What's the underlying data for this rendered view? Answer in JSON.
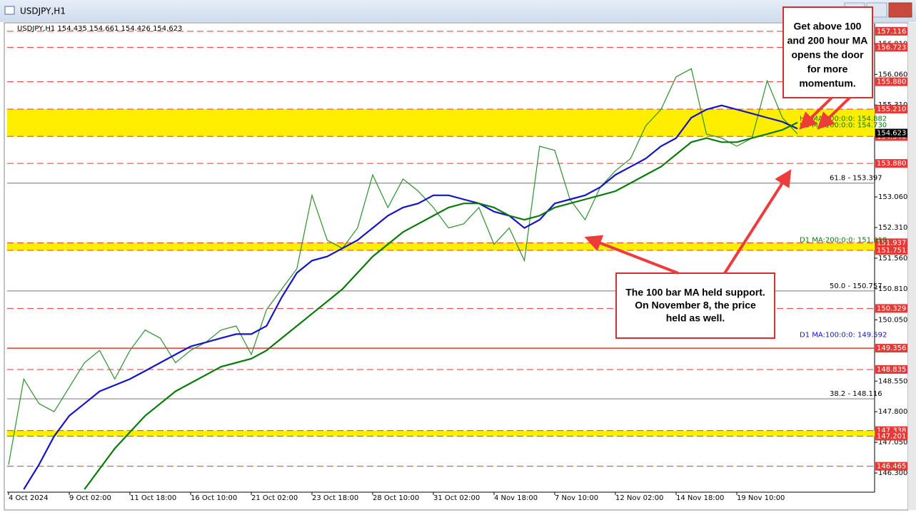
{
  "window_title": "USDJPY,H1",
  "chart_data": {
    "type": "line",
    "title": "USDJPY,H1 154.435 154.661 154.426 154.623",
    "current_price": 154.623,
    "categories": [
      "4 Oct 2024",
      null,
      null,
      null,
      "9 Oct 02:00",
      null,
      null,
      null,
      "11 Oct 18:00",
      null,
      null,
      null,
      "16 Oct 10:00",
      null,
      null,
      null,
      "21 Oct 02:00",
      null,
      null,
      null,
      "23 Oct 18:00",
      null,
      null,
      null,
      "28 Oct 10:00",
      null,
      null,
      null,
      "31 Oct 02:00",
      null,
      null,
      null,
      "4 Nov 18:00",
      null,
      null,
      null,
      "7 Nov 10:00",
      null,
      null,
      null,
      "12 Nov 02:00",
      null,
      null,
      null,
      "14 Nov 18:00",
      null,
      null,
      null,
      "19 Nov 10:00",
      null,
      null,
      null,
      null
    ],
    "series": [
      {
        "color": "#2f8f2f",
        "width": 1.2,
        "values": [
          146.5,
          148.6,
          148.0,
          147.8,
          148.4,
          149.0,
          149.3,
          148.6,
          149.3,
          149.8,
          149.6,
          149.0,
          149.3,
          149.5,
          149.8,
          149.9,
          149.2,
          150.3,
          150.8,
          151.3,
          153.1,
          152.0,
          151.8,
          152.3,
          153.6,
          152.8,
          153.5,
          153.2,
          152.8,
          152.3,
          152.4,
          152.8,
          151.9,
          152.3,
          151.5,
          154.3,
          154.2,
          153.0,
          152.5,
          153.3,
          153.7,
          154.0,
          154.8,
          155.2,
          156.0,
          156.2,
          154.6,
          154.5,
          154.3,
          154.5,
          155.9,
          155.0,
          154.6
        ]
      },
      {
        "color": "#1414c8",
        "width": 2.2,
        "values": [
          null,
          145.9,
          146.5,
          147.2,
          147.7,
          148.0,
          148.3,
          148.45,
          148.6,
          148.8,
          149.0,
          149.2,
          149.4,
          149.5,
          149.6,
          149.7,
          149.7,
          149.9,
          150.6,
          151.2,
          151.5,
          151.6,
          151.8,
          152.0,
          152.3,
          152.6,
          152.8,
          152.9,
          153.1,
          153.1,
          153.0,
          152.9,
          152.7,
          152.6,
          152.3,
          152.5,
          152.9,
          153.0,
          153.1,
          153.3,
          153.6,
          153.8,
          154.0,
          154.3,
          154.5,
          155.0,
          155.2,
          155.3,
          155.2,
          155.1,
          155.0,
          154.9,
          154.73
        ]
      },
      {
        "color": "#0a7a0a",
        "width": 2.2,
        "values": [
          null,
          null,
          null,
          null,
          null,
          145.9,
          146.4,
          146.9,
          147.3,
          147.7,
          148.0,
          148.3,
          148.5,
          148.7,
          148.9,
          149.0,
          149.1,
          149.3,
          149.6,
          149.9,
          150.2,
          150.5,
          150.8,
          151.2,
          151.6,
          151.9,
          152.2,
          152.4,
          152.6,
          152.8,
          152.9,
          152.9,
          152.8,
          152.6,
          152.5,
          152.6,
          152.8,
          152.9,
          153.0,
          153.1,
          153.2,
          153.4,
          153.6,
          153.8,
          154.1,
          154.4,
          154.5,
          154.4,
          154.4,
          154.5,
          154.6,
          154.7,
          154.882
        ]
      }
    ],
    "ylim": [
      145.83,
      157.27
    ],
    "yticks": [
      {
        "value": 146.3,
        "label": "146.300"
      },
      {
        "value": 147.05,
        "label": "147.050"
      },
      {
        "value": 147.8,
        "label": "147.800"
      },
      {
        "value": 148.55,
        "label": "148.550"
      },
      {
        "value": 150.05,
        "label": "150.050"
      },
      {
        "value": 150.81,
        "label": "150.810"
      },
      {
        "value": 151.56,
        "label": "151.560"
      },
      {
        "value": 152.31,
        "label": "152.310"
      },
      {
        "value": 153.06,
        "label": "153.060"
      },
      {
        "value": 155.31,
        "label": "155.310"
      },
      {
        "value": 156.06,
        "label": "156.060"
      },
      {
        "value": 156.81,
        "label": "156.810"
      }
    ],
    "levels": [
      157.116,
      156.723,
      {
        "value": 155.88,
        "label": "155.880"
      },
      {
        "value": 155.21,
        "label": "155.210"
      },
      {
        "value": 154.54,
        "label": "154.540"
      },
      {
        "value": 153.88,
        "label": "153.880"
      },
      151.937,
      151.751,
      150.329,
      149.356,
      148.835,
      147.338,
      147.201,
      146.465
    ],
    "zones": [
      [
        155.21,
        154.54
      ],
      [
        151.937,
        151.751
      ],
      [
        147.338,
        147.201
      ]
    ],
    "fib_lines": [
      {
        "value": 153.397,
        "text": "61.8 - 153.397"
      },
      {
        "value": 150.757,
        "text": "50.0 - 150.757"
      },
      {
        "value": 148.116,
        "text": "38.2 - 148.116"
      }
    ],
    "ma_labels": [
      {
        "value": 154.882,
        "text": "H1 MA:200:0:0: 154.882"
      },
      {
        "value": 154.73,
        "text": "H1 MA:100:0:0: 154.730"
      },
      {
        "value": 151.918,
        "text": "D1 MA:200:0:0: 151.918"
      },
      {
        "value": 149.592,
        "text": "D1 MA:100:0:0: 149.592"
      }
    ],
    "annotations": [
      {
        "lines": [
          "Get above 100",
          "and 200 hour MA",
          "opens the door",
          "for more",
          "momentum."
        ]
      },
      {
        "lines": [
          "The 100 bar MA held support.",
          "On November 8, the price",
          "held as well."
        ]
      }
    ]
  }
}
